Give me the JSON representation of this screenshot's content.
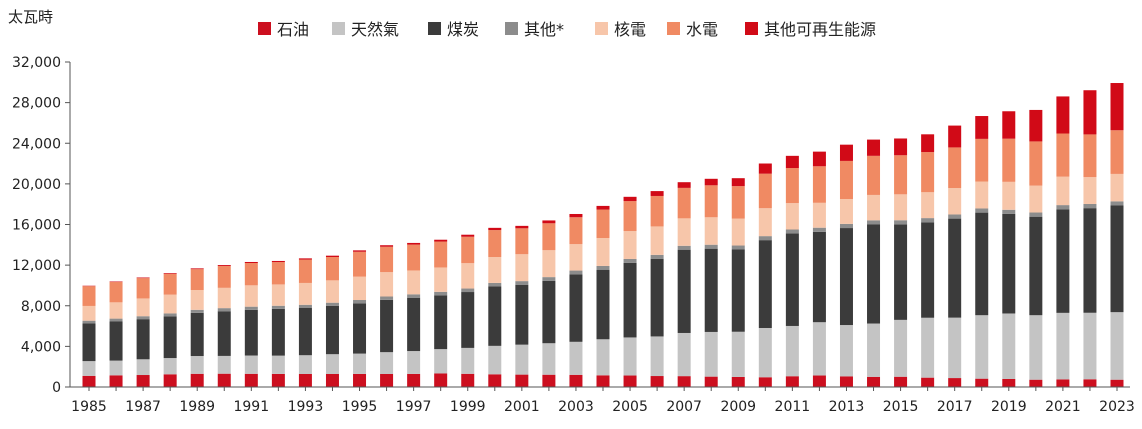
{
  "chart_data": {
    "type": "bar",
    "stacked": true,
    "unit_label": "太瓦時",
    "ylim": [
      0,
      32000
    ],
    "yticks": [
      "0",
      "4,000",
      "8,000",
      "12,000",
      "16,000",
      "20,000",
      "24,000",
      "28,000",
      "32,000"
    ],
    "ytick_values": [
      0,
      4000,
      8000,
      12000,
      16000,
      20000,
      24000,
      28000,
      32000
    ],
    "grid": false,
    "legend_position": "top",
    "categories": [
      1985,
      1986,
      1987,
      1988,
      1989,
      1990,
      1991,
      1992,
      1993,
      1994,
      1995,
      1996,
      1997,
      1998,
      1999,
      2000,
      2001,
      2002,
      2003,
      2004,
      2005,
      2006,
      2007,
      2008,
      2009,
      2010,
      2011,
      2012,
      2013,
      2014,
      2015,
      2016,
      2017,
      2018,
      2019,
      2020,
      2021,
      2022,
      2023
    ],
    "xtick_labels": [
      "1985",
      "1987",
      "1989",
      "1991",
      "1993",
      "1995",
      "1997",
      "1999",
      "2001",
      "2003",
      "2005",
      "2007",
      "2009",
      "2011",
      "2013",
      "2015",
      "2017",
      "2019",
      "2021",
      "2023"
    ],
    "series": [
      {
        "name": "石油",
        "color": "#cc0f1f",
        "values": [
          1100,
          1150,
          1180,
          1250,
          1300,
          1310,
          1300,
          1290,
          1280,
          1280,
          1290,
          1280,
          1290,
          1330,
          1300,
          1250,
          1220,
          1210,
          1200,
          1150,
          1130,
          1080,
          1070,
          1020,
          990,
          960,
          1060,
          1130,
          1050,
          1000,
          1010,
          920,
          880,
          820,
          790,
          720,
          750,
          760,
          720
        ]
      },
      {
        "name": "天然氣",
        "color": "#c4c4c4",
        "values": [
          1450,
          1450,
          1550,
          1600,
          1750,
          1750,
          1800,
          1800,
          1850,
          1950,
          2000,
          2150,
          2250,
          2400,
          2550,
          2800,
          2950,
          3100,
          3250,
          3550,
          3750,
          3900,
          4250,
          4400,
          4450,
          4850,
          4950,
          5250,
          5050,
          5250,
          5600,
          5900,
          5950,
          6250,
          6450,
          6350,
          6550,
          6550,
          6650
        ]
      },
      {
        "name": "煤炭",
        "color": "#3b3b3b",
        "values": [
          3700,
          3850,
          3950,
          4100,
          4250,
          4400,
          4500,
          4600,
          4650,
          4750,
          4950,
          5150,
          5250,
          5300,
          5500,
          5850,
          5900,
          6150,
          6650,
          6850,
          7350,
          7650,
          8200,
          8200,
          8100,
          8650,
          9100,
          8900,
          9550,
          9750,
          9400,
          9400,
          9750,
          10100,
          9800,
          9700,
          10200,
          10300,
          10500
        ]
      },
      {
        "name": "其他*",
        "color": "#8c8c8c",
        "values": [
          280,
          285,
          290,
          295,
          300,
          305,
          310,
          310,
          315,
          320,
          325,
          330,
          335,
          340,
          345,
          350,
          355,
          360,
          365,
          370,
          375,
          380,
          385,
          390,
          390,
          395,
          400,
          405,
          410,
          410,
          410,
          410,
          410,
          410,
          410,
          410,
          410,
          410,
          410
        ]
      },
      {
        "name": "核電",
        "color": "#f7c6aa",
        "values": [
          1450,
          1600,
          1750,
          1850,
          1950,
          2000,
          2100,
          2100,
          2150,
          2200,
          2300,
          2400,
          2350,
          2400,
          2500,
          2550,
          2650,
          2650,
          2600,
          2750,
          2750,
          2800,
          2700,
          2700,
          2650,
          2750,
          2600,
          2450,
          2450,
          2500,
          2550,
          2550,
          2600,
          2650,
          2750,
          2650,
          2800,
          2650,
          2700
        ]
      },
      {
        "name": "水電",
        "color": "#f08a63",
        "values": [
          1950,
          2000,
          2000,
          2050,
          2050,
          2150,
          2200,
          2200,
          2300,
          2300,
          2450,
          2500,
          2550,
          2550,
          2600,
          2650,
          2550,
          2650,
          2650,
          2800,
          2950,
          3000,
          3000,
          3150,
          3200,
          3400,
          3450,
          3600,
          3750,
          3850,
          3850,
          3950,
          4000,
          4200,
          4250,
          4350,
          4250,
          4200,
          4300
        ]
      },
      {
        "name": "其他可再生能源",
        "color": "#d10a17",
        "values": [
          40,
          50,
          60,
          70,
          80,
          90,
          100,
          110,
          120,
          130,
          140,
          150,
          160,
          180,
          200,
          220,
          240,
          280,
          320,
          360,
          420,
          480,
          560,
          640,
          780,
          1000,
          1200,
          1440,
          1600,
          1600,
          1650,
          1750,
          2150,
          2250,
          2700,
          3100,
          3650,
          4350,
          4650
        ]
      }
    ]
  }
}
